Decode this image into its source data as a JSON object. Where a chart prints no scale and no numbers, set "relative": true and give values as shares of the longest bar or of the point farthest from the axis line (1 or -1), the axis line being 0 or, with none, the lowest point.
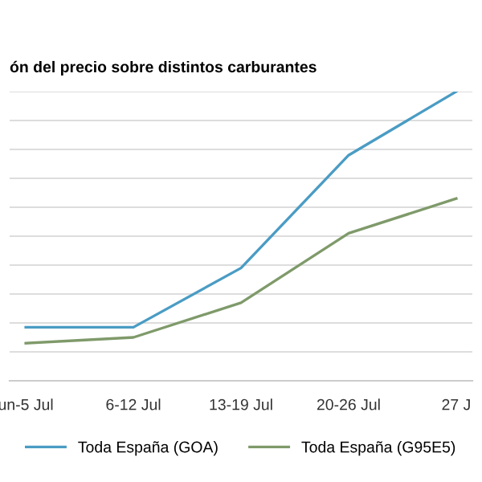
{
  "chart_data": {
    "type": "line",
    "title": "ón del precio sobre distintos carburantes",
    "categories": [
      "un-5 Jul",
      "6-12 Jul",
      "13-19 Jul",
      "20-26 Jul",
      "27 J"
    ],
    "relative": true,
    "series": [
      {
        "name": "Toda España (GOA)",
        "color": "#4a9cc4",
        "values": [
          0.185,
          0.185,
          0.39,
          0.78,
          1
        ]
      },
      {
        "name": "Toda España (G95E5)",
        "color": "#7f9a6a",
        "values": [
          0.13,
          0.15,
          0.27,
          0.51,
          0.63
        ]
      }
    ],
    "grid": "y",
    "legend": "bottom",
    "marker": "none",
    "line_style": "solid"
  }
}
